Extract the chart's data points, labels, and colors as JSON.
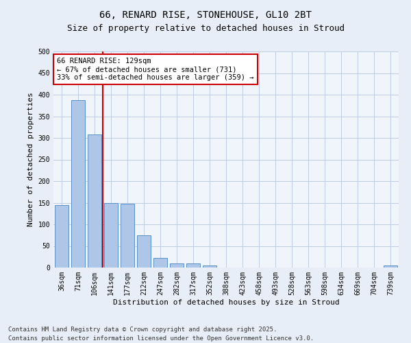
{
  "title_line1": "66, RENARD RISE, STONEHOUSE, GL10 2BT",
  "title_line2": "Size of property relative to detached houses in Stroud",
  "xlabel": "Distribution of detached houses by size in Stroud",
  "ylabel": "Number of detached properties",
  "categories": [
    "36sqm",
    "71sqm",
    "106sqm",
    "141sqm",
    "177sqm",
    "212sqm",
    "247sqm",
    "282sqm",
    "317sqm",
    "352sqm",
    "388sqm",
    "423sqm",
    "458sqm",
    "493sqm",
    "528sqm",
    "563sqm",
    "598sqm",
    "634sqm",
    "669sqm",
    "704sqm",
    "739sqm"
  ],
  "values": [
    145,
    388,
    308,
    149,
    148,
    75,
    22,
    10,
    9,
    5,
    0,
    0,
    0,
    0,
    0,
    0,
    0,
    0,
    0,
    0,
    5
  ],
  "bar_color": "#aec6e8",
  "bar_edge_color": "#5a8fc0",
  "vline_color": "#cc0000",
  "annotation_line1": "66 RENARD RISE: 129sqm",
  "annotation_line2": "← 67% of detached houses are smaller (731)",
  "annotation_line3": "33% of semi-detached houses are larger (359) →",
  "annotation_box_color": "#cc0000",
  "annotation_text_color": "#000000",
  "annotation_bg": "#ffffff",
  "ylim": [
    0,
    500
  ],
  "yticks": [
    0,
    50,
    100,
    150,
    200,
    250,
    300,
    350,
    400,
    450,
    500
  ],
  "footer_line1": "Contains HM Land Registry data © Crown copyright and database right 2025.",
  "footer_line2": "Contains public sector information licensed under the Open Government Licence v3.0.",
  "bg_color": "#e8eef7",
  "plot_bg_color": "#f0f4fb",
  "grid_color": "#c0cce0",
  "title_fontsize": 10,
  "subtitle_fontsize": 9,
  "axis_label_fontsize": 8,
  "tick_fontsize": 7,
  "footer_fontsize": 6.5,
  "annotation_fontsize": 7.5
}
